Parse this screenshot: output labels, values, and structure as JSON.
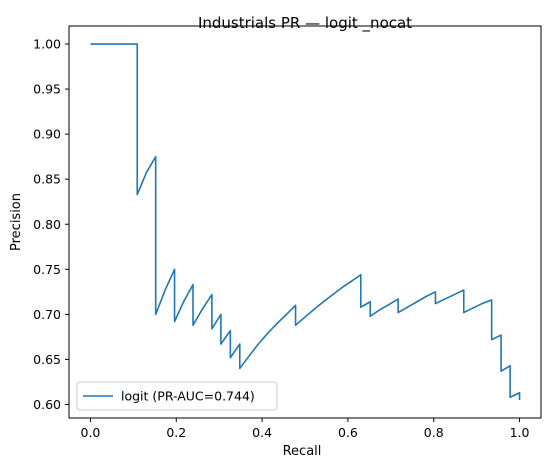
{
  "chart_data": {
    "type": "line",
    "title": "Industrials PR — logit _nocat",
    "xlabel": "Recall",
    "ylabel": "Precision",
    "xlim": [
      -0.05,
      1.05
    ],
    "ylim": [
      0.585,
      1.02
    ],
    "grid": false,
    "legend_position": "lower-left",
    "xticks": [
      {
        "value": 0.0,
        "label": "0.0"
      },
      {
        "value": 0.2,
        "label": "0.2"
      },
      {
        "value": 0.4,
        "label": "0.4"
      },
      {
        "value": 0.6,
        "label": "0.6"
      },
      {
        "value": 0.8,
        "label": "0.8"
      },
      {
        "value": 1.0,
        "label": "1.0"
      }
    ],
    "yticks": [
      {
        "value": 0.6,
        "label": "0.60"
      },
      {
        "value": 0.65,
        "label": "0.65"
      },
      {
        "value": 0.7,
        "label": "0.70"
      },
      {
        "value": 0.75,
        "label": "0.75"
      },
      {
        "value": 0.8,
        "label": "0.80"
      },
      {
        "value": 0.85,
        "label": "0.85"
      },
      {
        "value": 0.9,
        "label": "0.90"
      },
      {
        "value": 0.95,
        "label": "0.95"
      },
      {
        "value": 1.0,
        "label": "1.00"
      }
    ],
    "series": [
      {
        "name": "logit (PR-AUC=0.744)",
        "color": "#1f77b4",
        "x": [
          0.0,
          0.109,
          0.109,
          0.13,
          0.152,
          0.152,
          0.174,
          0.196,
          0.196,
          0.217,
          0.239,
          0.239,
          0.261,
          0.283,
          0.283,
          0.304,
          0.304,
          0.326,
          0.326,
          0.348,
          0.348,
          0.37,
          0.391,
          0.413,
          0.435,
          0.457,
          0.478,
          0.478,
          0.5,
          0.522,
          0.543,
          0.565,
          0.587,
          0.609,
          0.63,
          0.63,
          0.652,
          0.652,
          0.674,
          0.696,
          0.717,
          0.717,
          0.739,
          0.761,
          0.783,
          0.804,
          0.804,
          0.826,
          0.848,
          0.87,
          0.87,
          0.891,
          0.913,
          0.935,
          0.935,
          0.957,
          0.957,
          0.978,
          0.978,
          1.0,
          1.0
        ],
        "y": [
          1.0,
          1.0,
          0.833,
          0.857,
          0.875,
          0.7,
          0.727,
          0.75,
          0.692,
          0.714,
          0.733,
          0.688,
          0.706,
          0.722,
          0.684,
          0.7,
          0.667,
          0.682,
          0.652,
          0.667,
          0.64,
          0.654,
          0.667,
          0.679,
          0.69,
          0.7,
          0.71,
          0.688,
          0.697,
          0.706,
          0.714,
          0.722,
          0.73,
          0.737,
          0.744,
          0.708,
          0.714,
          0.698,
          0.705,
          0.711,
          0.717,
          0.702,
          0.708,
          0.714,
          0.72,
          0.725,
          0.712,
          0.717,
          0.722,
          0.727,
          0.702,
          0.707,
          0.712,
          0.716,
          0.672,
          0.677,
          0.637,
          0.643,
          0.608,
          0.613,
          0.605
        ]
      }
    ]
  }
}
